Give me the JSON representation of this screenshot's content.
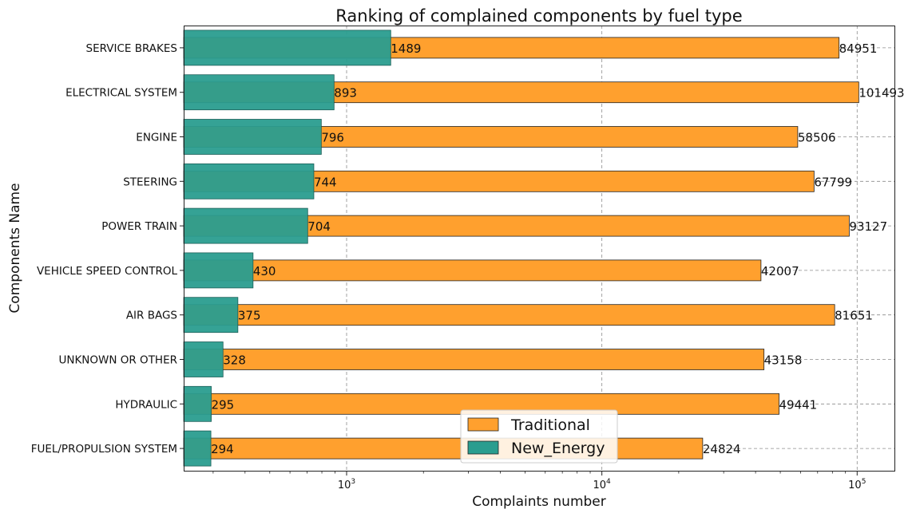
{
  "chart_data": {
    "type": "bar",
    "orientation": "horizontal",
    "title": "Ranking of complained components by fuel type",
    "xlabel": "Complaints number",
    "ylabel": "Components Name",
    "xscale": "log",
    "xlim": [
      230,
      140000
    ],
    "x_ticks": [
      {
        "value": 1000,
        "base": "10",
        "exp": "3"
      },
      {
        "value": 10000,
        "base": "10",
        "exp": "4"
      },
      {
        "value": 100000,
        "base": "10",
        "exp": "5"
      }
    ],
    "grid": true,
    "legend_position": "lower-center",
    "categories": [
      "SERVICE BRAKES",
      "ELECTRICAL SYSTEM",
      "ENGINE",
      "STEERING",
      "POWER TRAIN",
      "VEHICLE SPEED CONTROL",
      "AIR BAGS",
      "UNKNOWN OR OTHER",
      "HYDRAULIC",
      "FUEL/PROPULSION SYSTEM"
    ],
    "series": [
      {
        "name": "Traditional",
        "color": "#ffa02e",
        "values": [
          84951,
          101493,
          58506,
          67799,
          93127,
          42007,
          81651,
          43158,
          49441,
          24824
        ]
      },
      {
        "name": "New_Energy",
        "color": "#2a9d8f",
        "values": [
          1489,
          893,
          796,
          744,
          704,
          430,
          375,
          328,
          295,
          294
        ]
      }
    ]
  }
}
